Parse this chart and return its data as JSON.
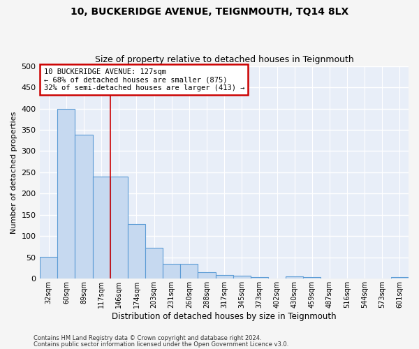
{
  "title1": "10, BUCKERIDGE AVENUE, TEIGNMOUTH, TQ14 8LX",
  "title2": "Size of property relative to detached houses in Teignmouth",
  "xlabel": "Distribution of detached houses by size in Teignmouth",
  "ylabel": "Number of detached properties",
  "categories": [
    "32sqm",
    "60sqm",
    "89sqm",
    "117sqm",
    "146sqm",
    "174sqm",
    "203sqm",
    "231sqm",
    "260sqm",
    "288sqm",
    "317sqm",
    "345sqm",
    "373sqm",
    "402sqm",
    "430sqm",
    "459sqm",
    "487sqm",
    "516sqm",
    "544sqm",
    "573sqm",
    "601sqm"
  ],
  "values": [
    52,
    400,
    338,
    240,
    240,
    128,
    73,
    35,
    35,
    15,
    8,
    7,
    4,
    1,
    5,
    4,
    1,
    0,
    1,
    0,
    4
  ],
  "bar_color": "#c6d9f0",
  "bar_edge_color": "#5b9bd5",
  "background_color": "#e8eef8",
  "grid_color": "#ffffff",
  "red_line_x": 3.5,
  "annotation_text": "10 BUCKERIDGE AVENUE: 127sqm\n← 68% of detached houses are smaller (875)\n32% of semi-detached houses are larger (413) →",
  "annotation_box_color": "#ffffff",
  "annotation_box_edge": "#cc0000",
  "footnote1": "Contains HM Land Registry data © Crown copyright and database right 2024.",
  "footnote2": "Contains public sector information licensed under the Open Government Licence v3.0.",
  "ylim": [
    0,
    500
  ],
  "yticks": [
    0,
    50,
    100,
    150,
    200,
    250,
    300,
    350,
    400,
    450,
    500
  ]
}
